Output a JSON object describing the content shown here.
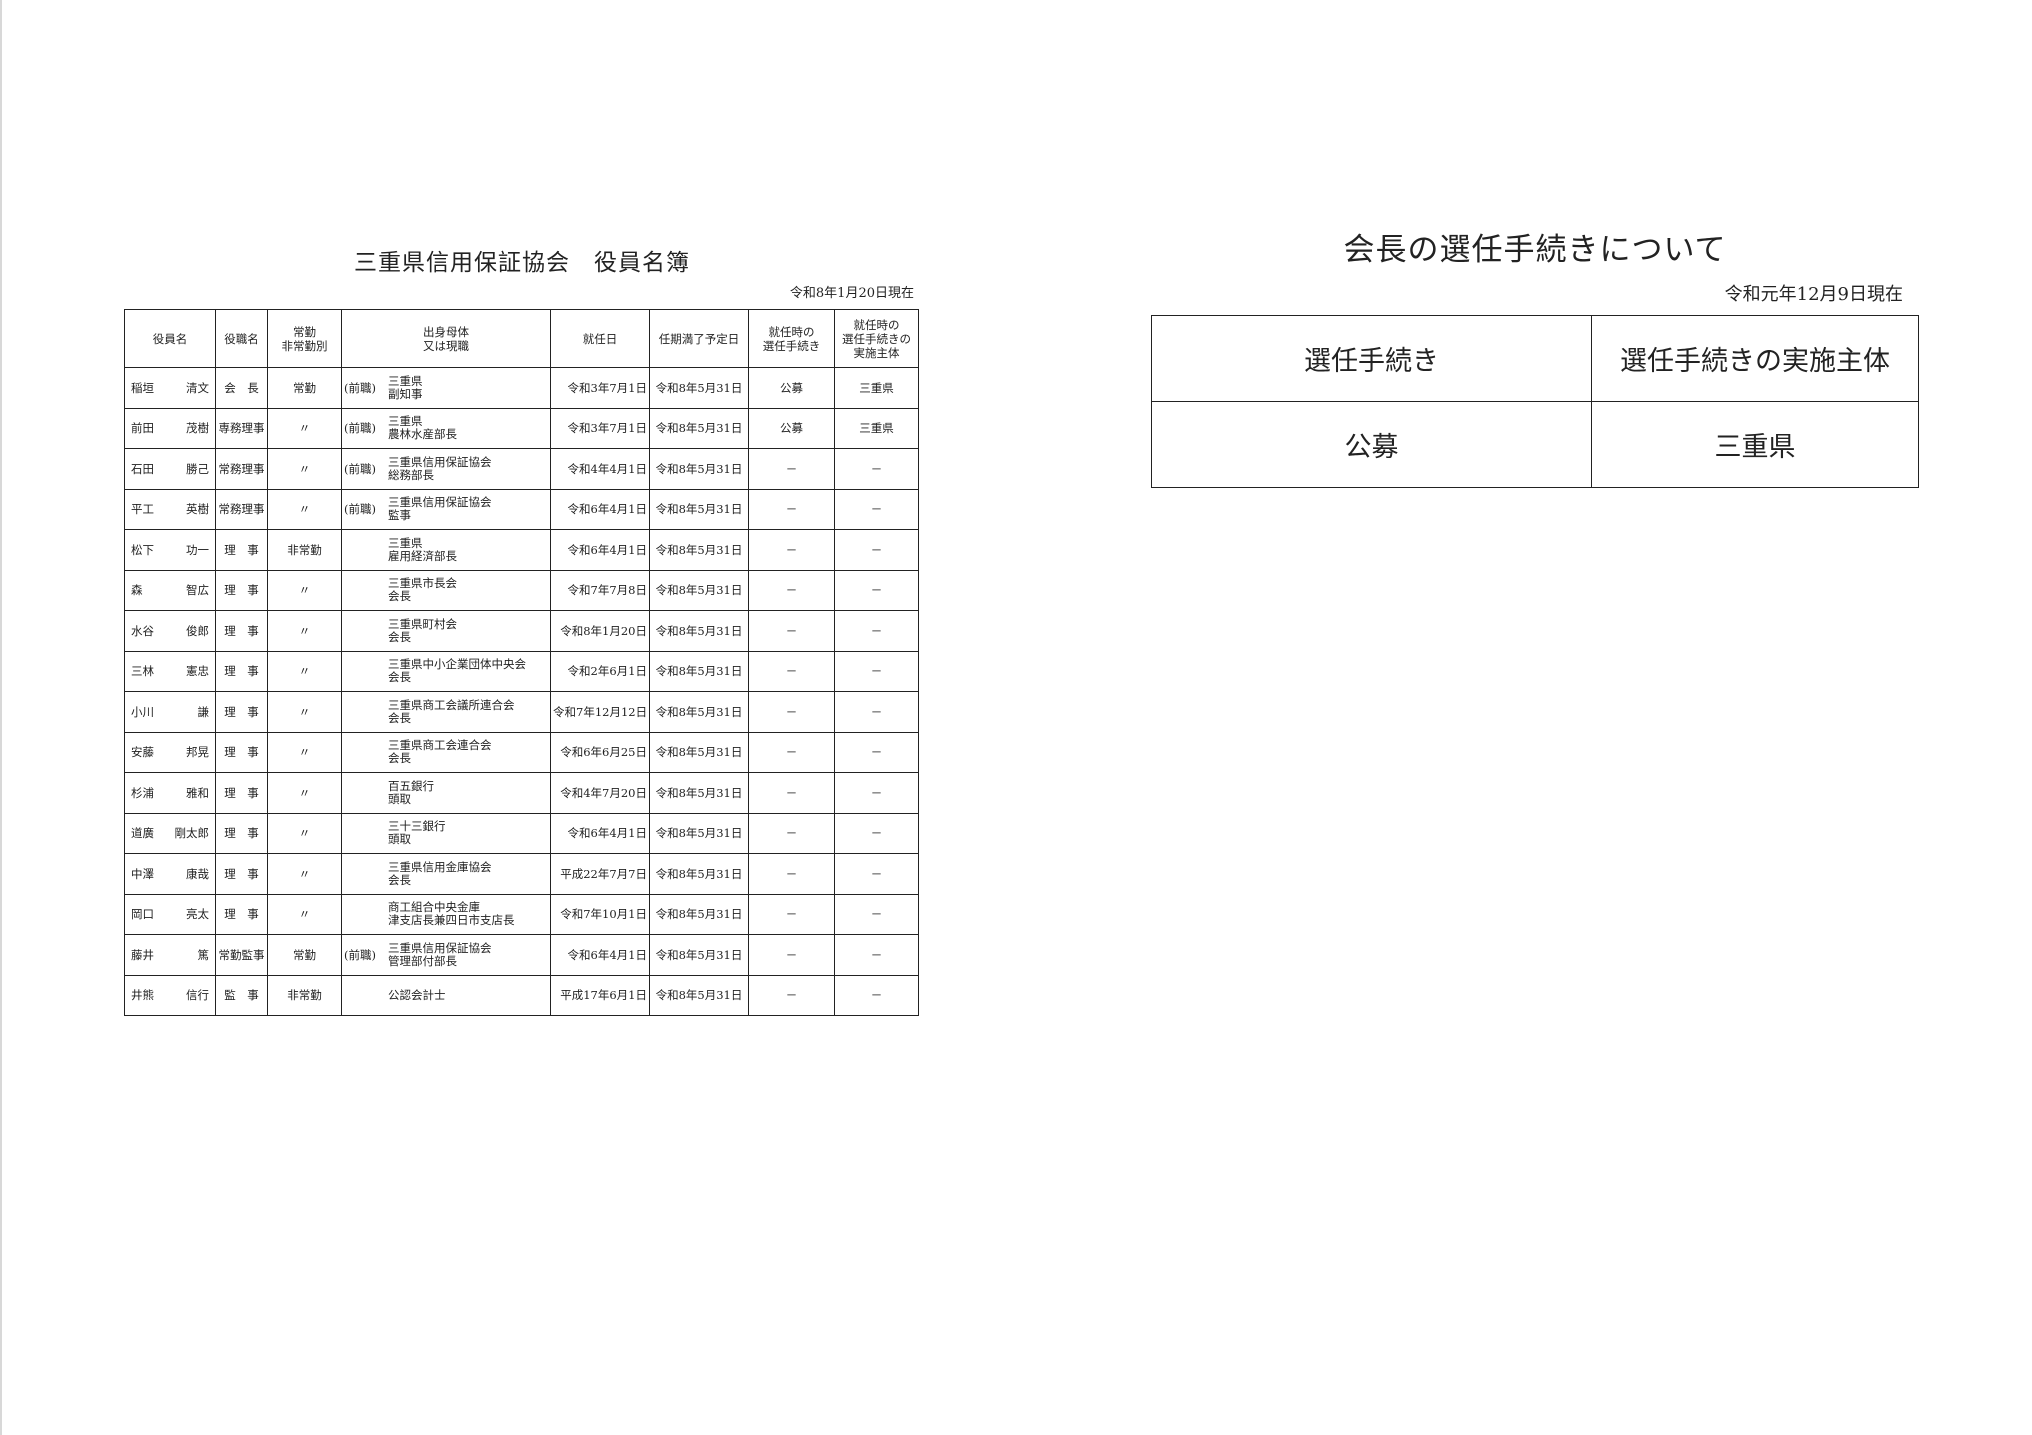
{
  "left": {
    "title": "三重県信用保証協会　役員名簿",
    "as_of": "令和8年1月20日現在",
    "headers": [
      "役員名",
      "役職名",
      "常勤\n非常勤別",
      "出身母体\n又は現職",
      "就任日",
      "任期満了予定日",
      "就任時の\n選任手続き",
      "就任時の\n選任手続きの\n実施主体"
    ],
    "rows": [
      {
        "surname": "稲垣",
        "given": "清文",
        "role": "会　長",
        "type": "常勤",
        "prefix": "(前職)",
        "affiliation": [
          "三重県",
          "副知事"
        ],
        "start": "令和3年7月1日",
        "end": "令和8年5月31日",
        "procedure": "公募",
        "body": "三重県"
      },
      {
        "surname": "前田",
        "given": "茂樹",
        "role": "専務理事",
        "type": "〃",
        "prefix": "(前職)",
        "affiliation": [
          "三重県",
          "農林水産部長"
        ],
        "start": "令和3年7月1日",
        "end": "令和8年5月31日",
        "procedure": "公募",
        "body": "三重県"
      },
      {
        "surname": "石田",
        "given": "勝己",
        "role": "常務理事",
        "type": "〃",
        "prefix": "(前職)",
        "affiliation": [
          "三重県信用保証協会",
          "総務部長"
        ],
        "start": "令和4年4月1日",
        "end": "令和8年5月31日",
        "procedure": "－",
        "body": "－"
      },
      {
        "surname": "平工",
        "given": "英樹",
        "role": "常務理事",
        "type": "〃",
        "prefix": "(前職)",
        "affiliation": [
          "三重県信用保証協会",
          "監事"
        ],
        "start": "令和6年4月1日",
        "end": "令和8年5月31日",
        "procedure": "－",
        "body": "－"
      },
      {
        "surname": "松下",
        "given": "功一",
        "role": "理　事",
        "type": "非常勤",
        "prefix": "",
        "affiliation": [
          "三重県",
          "雇用経済部長"
        ],
        "start": "令和6年4月1日",
        "end": "令和8年5月31日",
        "procedure": "－",
        "body": "－"
      },
      {
        "surname": "森",
        "given": "智広",
        "role": "理　事",
        "type": "〃",
        "prefix": "",
        "affiliation": [
          "三重県市長会",
          "会長"
        ],
        "start": "令和7年7月8日",
        "end": "令和8年5月31日",
        "procedure": "－",
        "body": "－"
      },
      {
        "surname": "水谷",
        "given": "俊郎",
        "role": "理　事",
        "type": "〃",
        "prefix": "",
        "affiliation": [
          "三重県町村会",
          "会長"
        ],
        "start": "令和8年1月20日",
        "end": "令和8年5月31日",
        "procedure": "－",
        "body": "－"
      },
      {
        "surname": "三林",
        "given": "憲忠",
        "role": "理　事",
        "type": "〃",
        "prefix": "",
        "affiliation": [
          "三重県中小企業団体中央会",
          "会長"
        ],
        "start": "令和2年6月1日",
        "end": "令和8年5月31日",
        "procedure": "－",
        "body": "－"
      },
      {
        "surname": "小川",
        "given": "謙",
        "role": "理　事",
        "type": "〃",
        "prefix": "",
        "affiliation": [
          "三重県商工会議所連合会",
          "会長"
        ],
        "start": "令和7年12月12日",
        "end": "令和8年5月31日",
        "procedure": "－",
        "body": "－"
      },
      {
        "surname": "安藤",
        "given": "邦晃",
        "role": "理　事",
        "type": "〃",
        "prefix": "",
        "affiliation": [
          "三重県商工会連合会",
          "会長"
        ],
        "start": "令和6年6月25日",
        "end": "令和8年5月31日",
        "procedure": "－",
        "body": "－"
      },
      {
        "surname": "杉浦",
        "given": "雅和",
        "role": "理　事",
        "type": "〃",
        "prefix": "",
        "affiliation": [
          "百五銀行",
          "頭取"
        ],
        "start": "令和4年7月20日",
        "end": "令和8年5月31日",
        "procedure": "－",
        "body": "－"
      },
      {
        "surname": "道廣",
        "given": "剛太郎",
        "role": "理　事",
        "type": "〃",
        "prefix": "",
        "affiliation": [
          "三十三銀行",
          "頭取"
        ],
        "start": "令和6年4月1日",
        "end": "令和8年5月31日",
        "procedure": "－",
        "body": "－"
      },
      {
        "surname": "中澤",
        "given": "康哉",
        "role": "理　事",
        "type": "〃",
        "prefix": "",
        "affiliation": [
          "三重県信用金庫協会",
          "会長"
        ],
        "start": "平成22年7月7日",
        "end": "令和8年5月31日",
        "procedure": "－",
        "body": "－"
      },
      {
        "surname": "岡口",
        "given": "亮太",
        "role": "理　事",
        "type": "〃",
        "prefix": "",
        "affiliation": [
          "商工組合中央金庫",
          "津支店長兼四日市支店長"
        ],
        "start": "令和7年10月1日",
        "end": "令和8年5月31日",
        "procedure": "－",
        "body": "－"
      },
      {
        "surname": "藤井",
        "given": "篤",
        "role": "常勤監事",
        "type": "常勤",
        "prefix": "(前職)",
        "affiliation": [
          "三重県信用保証協会",
          "管理部付部長"
        ],
        "start": "令和6年4月1日",
        "end": "令和8年5月31日",
        "procedure": "－",
        "body": "－"
      },
      {
        "surname": "井熊",
        "given": "信行",
        "role": "監　事",
        "type": "非常勤",
        "prefix": "",
        "affiliation": [
          "公認会計士"
        ],
        "start": "平成17年6月1日",
        "end": "令和8年5月31日",
        "procedure": "－",
        "body": "－"
      }
    ]
  },
  "right": {
    "title": "会長の選任手続きについて",
    "as_of": "令和元年12月9日現在",
    "header_procedure": "選任手続き",
    "header_body": "選任手続きの実施主体",
    "procedure": "公募",
    "body": "三重県"
  }
}
